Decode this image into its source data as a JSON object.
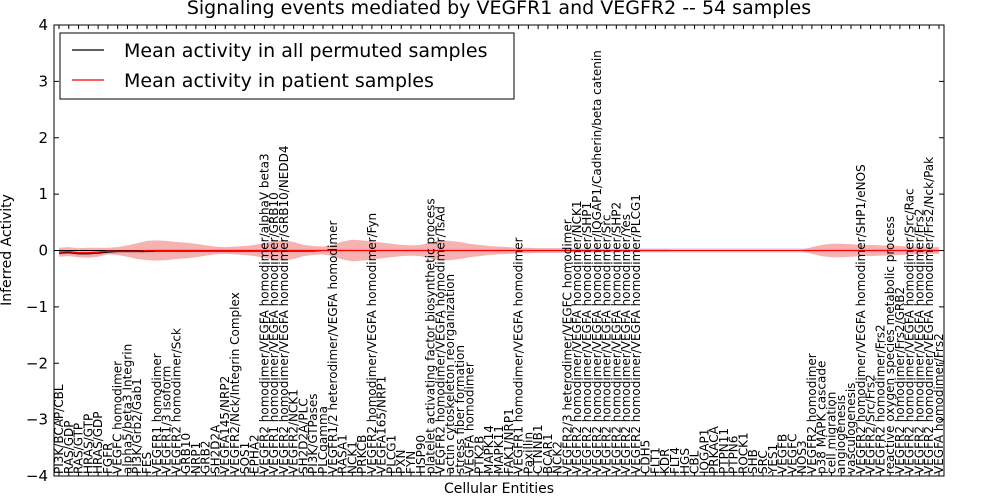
{
  "chart_data": {
    "type": "line",
    "title": "Signaling events mediated by VEGFR1 and VEGFR2 -- 54 samples",
    "xlabel": "Cellular Entities",
    "ylabel": "Inferred Activity",
    "ylim": [
      -4,
      4
    ],
    "yticks": [
      "4",
      "3",
      "2",
      "1",
      "0",
      "−1",
      "−2",
      "−3",
      "−4"
    ],
    "legend": {
      "placement": "top-left",
      "entries": [
        {
          "label": "Mean activity in all permuted samples",
          "color": "#000000"
        },
        {
          "label": "Mean activity in patient samples",
          "color": "#ff0000"
        }
      ]
    },
    "colors": {
      "band": "#f4a3a3",
      "permuted_band": "#c7c7e6"
    },
    "x_labels": [
      "PI3K/BCAP/CBL",
      "RAS/GDP",
      "RAS/GTP",
      "HRAS/GTP",
      "HRAS/GDP",
      "FGFR",
      "VEGFC homodimer",
      "alpha5/beta3 Integrin",
      "PI3K/Grb2/Gab1",
      "FES",
      "VEGFR1 homodimer",
      "VEGFR1/3 isoform",
      "VEGFR2 homodimer/Sck",
      "GRB10",
      "NRP1",
      "GRB2",
      "SH2D2A",
      "VEGFA145/NRP2",
      "VEGFR2/Nck/Integrin Complex",
      "SOS1",
      "EPHA2",
      "VEGFR2 homodimer/VEGFA homodimer/alphaV beta3",
      "VEGFR1 homodimer/VEGFA homodimer/GRB10",
      "VEGFR2 homodimer/VEGFA homodimer/GRB10/NEDD4",
      "VEGFR2/NCK1",
      "SH2D2A/PLC",
      "PI3K/GTPases",
      "PLCgamma",
      "VEGFR1/2 heterodimer/VEGFA homodimer",
      "RASA1",
      "NCK1",
      "PRKCB",
      "VEGFR2 homodimer/VEGFA homodimer/Fyn",
      "VEGFA165/NRP1",
      "PLCG1",
      "PXN",
      "FYN",
      "HSP90",
      "platelet activating factor biosynthetic process",
      "VEGFR2 homodimer/VEGFA homodimer/TsAd",
      "actin cytoskeleton reorganization",
      "stress fiber formation",
      "VEGFA homodimer",
      "PTK2B",
      "MAPK14",
      "MAPK11",
      "FAK1/NRP1",
      "VEGFR1 homodimer/VEGFA homodimer",
      "Paxillin",
      "CTNNB1",
      "BCAR1",
      "NCK2",
      "VEGFR2/3 heterodimer/VEGFC homodimer",
      "VEGFR2 homodimer/VEGFA homodimer/NCK1",
      "VEGFR2 homodimer/VEGFA homodimer/SHP1",
      "VEGFR2 homodimer/VEGFA homodimer/IQGAP1/Cadherin/beta catenin",
      "VEGFR2 homodimer/VEGFA homodimer/Src",
      "VEGFR2 homodimer/VEGFA homodimer/SHP2",
      "VEGFR2 homodimer/VEGFA homodimer/Yes",
      "VEGFR2 homodimer/VEGFA homodimer/PLCG1",
      "CDH5",
      "FLT1",
      "KDR",
      "FLT4",
      "HGS",
      "CBL",
      "IQGAP1",
      "PRKACA",
      "PTPN11",
      "PTPN6",
      "ROCK1",
      "SHB",
      "SRC",
      "YES1",
      "VEGFB",
      "VEGFC",
      "NOS3",
      "VEGFR2 homodimer",
      "p38 MAPK cascade",
      "cell migration",
      "angiogenesis",
      "vasculogenesis",
      "VEGFR2 homodimer/VEGFA homodimer/SHP1/eNOS",
      "VEGFR2/Src/Frs2",
      "VEGFR2 homodimer/Frs2",
      "reactive oxygen species metabolic process",
      "VEGFR2 homodimer/Frs2/GRB2",
      "VEGFR2 homodimer/VEGFA homodimer/Src/Rac",
      "VEGFR2 homodimer/VEGFA homodimer/Frs2",
      "VEGFR2 homodimer/VEGFA homodimer/Frs2/Nck/Pak",
      "VEGFA homodimer/Frs2"
    ],
    "series": [
      {
        "name": "Mean activity in all permuted samples",
        "color": "#000000",
        "values": [
          -0.05,
          -0.04,
          -0.06,
          -0.06,
          -0.05,
          -0.03,
          -0.02,
          -0.02,
          -0.02,
          -0.02,
          -0.01,
          -0.01,
          -0.01,
          -0.01,
          -0.01,
          -0.01,
          -0.01,
          -0.01,
          -0.01,
          -0.01,
          -0.01,
          -0.01,
          -0.01,
          -0.01,
          -0.01,
          -0.01,
          -0.01,
          0,
          0,
          0,
          0,
          0,
          0,
          0,
          0,
          0,
          0,
          0,
          0,
          0,
          0,
          0,
          0,
          0,
          0,
          0,
          0,
          0,
          0,
          0,
          0,
          0,
          0,
          0,
          0,
          0,
          0,
          0,
          0,
          0,
          0,
          0,
          0,
          0,
          0,
          0,
          0,
          0,
          0,
          0,
          0,
          0,
          0,
          0,
          0,
          0,
          0,
          0,
          0,
          0,
          0,
          0,
          0,
          0,
          0,
          0,
          0,
          0,
          0,
          0,
          0
        ]
      },
      {
        "name": "Mean activity in patient samples",
        "color": "#ff0000",
        "values": [
          -0.03,
          -0.02,
          -0.04,
          -0.04,
          -0.03,
          -0.01,
          -0.01,
          -0.01,
          -0.01,
          0,
          0,
          0,
          0,
          0,
          0,
          0,
          0,
          0,
          0,
          0,
          0,
          0,
          0,
          0,
          0,
          0,
          0,
          0,
          0,
          0,
          0,
          0,
          0,
          0,
          0,
          0,
          0,
          0,
          0,
          0,
          0,
          0,
          0,
          0,
          0,
          0,
          0,
          0,
          0,
          0,
          0,
          0,
          0,
          0,
          0,
          0,
          0,
          0,
          0,
          0,
          0,
          0,
          0,
          0,
          0,
          0,
          0,
          0,
          0,
          0,
          0,
          0,
          0,
          0,
          0,
          0,
          0,
          0,
          0,
          0,
          0,
          0,
          0,
          0,
          0,
          0,
          0,
          0,
          0,
          0,
          0
        ]
      }
    ],
    "band_spread": [
      0.08,
      0.08,
      0.08,
      0.09,
      0.08,
      0.06,
      0.07,
      0.1,
      0.14,
      0.17,
      0.18,
      0.17,
      0.15,
      0.14,
      0.12,
      0.09,
      0.07,
      0.06,
      0.07,
      0.08,
      0.1,
      0.13,
      0.17,
      0.18,
      0.15,
      0.1,
      0.08,
      0.07,
      0.1,
      0.16,
      0.19,
      0.18,
      0.16,
      0.14,
      0.12,
      0.1,
      0.09,
      0.1,
      0.14,
      0.18,
      0.17,
      0.15,
      0.12,
      0.1,
      0.08,
      0.07,
      0.06,
      0.05,
      0.05,
      0.04,
      0.04,
      0.04,
      0.03,
      0.03,
      0.03,
      0.03,
      0.02,
      0.02,
      0.02,
      0.02,
      0.02,
      0.02,
      0.02,
      0.01,
      0.01,
      0.01,
      0.01,
      0.01,
      0.01,
      0.01,
      0.01,
      0.01,
      0.01,
      0.01,
      0.01,
      0.01,
      0.01,
      0.06,
      0.1,
      0.12,
      0.12,
      0.11,
      0.1,
      0.1,
      0.09,
      0.09,
      0.08,
      0.07,
      0.07,
      0.06,
      0.06
    ],
    "permuted_spread": 0.04
  }
}
